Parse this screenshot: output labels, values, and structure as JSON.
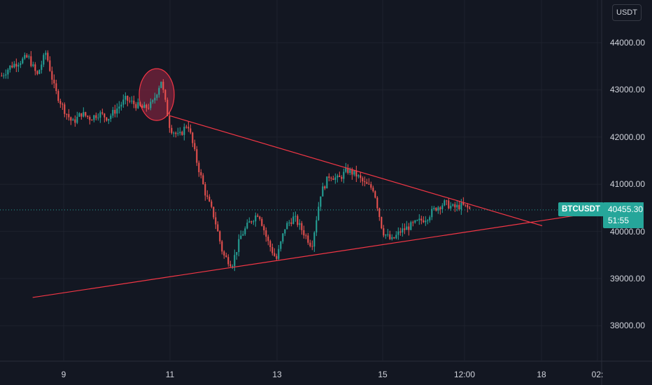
{
  "chart_data": {
    "type": "candlestick",
    "symbol": "BTCUSDT",
    "currency": "USDT",
    "last_price": "40455.30",
    "countdown": "51:55",
    "y_ticks": [
      "44000.00",
      "43000.00",
      "42000.00",
      "41000.00",
      "40000.00",
      "39000.00",
      "38000.00"
    ],
    "x_ticks": [
      "9",
      "11",
      "13",
      "15",
      "12:00",
      "18",
      "02:"
    ],
    "ylim": [
      37000,
      44800
    ],
    "grid": true,
    "colors": {
      "background": "#131722",
      "grid": "#1e222d",
      "up": "#26a69a",
      "down": "#ef5350",
      "trendline": "#f23645",
      "highlight": "#9c2745",
      "last_price_line": "#26a69a"
    },
    "trendlines": [
      {
        "name": "upper",
        "from": {
          "x": "Jan 11 00:00",
          "y": 42450
        },
        "to": {
          "x": "Jan 18 00:00",
          "y": 40120
        }
      },
      {
        "name": "lower",
        "from": {
          "x": "Jan 8 10:00",
          "y": 38600
        },
        "to": {
          "x": "Jan 19 00:00",
          "y": 40400
        }
      }
    ],
    "highlight_zone": {
      "x": "Jan 10 18:00",
      "y": 42900
    },
    "price_path": [
      {
        "t": "Jan 7 20:00",
        "p": 43300
      },
      {
        "t": "Jan 8 00:00",
        "p": 43500
      },
      {
        "t": "Jan 8 04:00",
        "p": 43600
      },
      {
        "t": "Jan 8 08:00",
        "p": 43700
      },
      {
        "t": "Jan 8 12:00",
        "p": 43300
      },
      {
        "t": "Jan 8 16:00",
        "p": 43800
      },
      {
        "t": "Jan 8 20:00",
        "p": 43000
      },
      {
        "t": "Jan 9 00:00",
        "p": 42600
      },
      {
        "t": "Jan 9 04:00",
        "p": 42300
      },
      {
        "t": "Jan 9 08:00",
        "p": 42500
      },
      {
        "t": "Jan 9 12:00",
        "p": 42400
      },
      {
        "t": "Jan 9 16:00",
        "p": 42500
      },
      {
        "t": "Jan 9 20:00",
        "p": 42400
      },
      {
        "t": "Jan 10 00:00",
        "p": 42600
      },
      {
        "t": "Jan 10 04:00",
        "p": 42800
      },
      {
        "t": "Jan 10 08:00",
        "p": 42700
      },
      {
        "t": "Jan 10 12:00",
        "p": 42600
      },
      {
        "t": "Jan 10 16:00",
        "p": 42700
      },
      {
        "t": "Jan 10 20:00",
        "p": 43200
      },
      {
        "t": "Jan 11 00:00",
        "p": 42200
      },
      {
        "t": "Jan 11 04:00",
        "p": 42000
      },
      {
        "t": "Jan 11 08:00",
        "p": 42300
      },
      {
        "t": "Jan 11 12:00",
        "p": 41500
      },
      {
        "t": "Jan 11 16:00",
        "p": 40800
      },
      {
        "t": "Jan 11 20:00",
        "p": 40300
      },
      {
        "t": "Jan 12 00:00",
        "p": 39500
      },
      {
        "t": "Jan 12 04:00",
        "p": 39300
      },
      {
        "t": "Jan 12 08:00",
        "p": 39900
      },
      {
        "t": "Jan 12 12:00",
        "p": 40200
      },
      {
        "t": "Jan 12 16:00",
        "p": 40400
      },
      {
        "t": "Jan 12 20:00",
        "p": 39800
      },
      {
        "t": "Jan 13 00:00",
        "p": 39400
      },
      {
        "t": "Jan 13 04:00",
        "p": 40100
      },
      {
        "t": "Jan 13 08:00",
        "p": 40300
      },
      {
        "t": "Jan 13 12:00",
        "p": 40000
      },
      {
        "t": "Jan 13 16:00",
        "p": 39700
      },
      {
        "t": "Jan 13 20:00",
        "p": 40800
      },
      {
        "t": "Jan 14 00:00",
        "p": 41200
      },
      {
        "t": "Jan 14 04:00",
        "p": 41100
      },
      {
        "t": "Jan 14 08:00",
        "p": 41300
      },
      {
        "t": "Jan 14 12:00",
        "p": 41200
      },
      {
        "t": "Jan 14 16:00",
        "p": 41000
      },
      {
        "t": "Jan 14 20:00",
        "p": 40900
      },
      {
        "t": "Jan 15 00:00",
        "p": 40000
      },
      {
        "t": "Jan 15 04:00",
        "p": 39800
      },
      {
        "t": "Jan 15 08:00",
        "p": 40000
      },
      {
        "t": "Jan 15 12:00",
        "p": 40100
      },
      {
        "t": "Jan 15 16:00",
        "p": 40200
      },
      {
        "t": "Jan 15 20:00",
        "p": 40300
      },
      {
        "t": "Jan 16 00:00",
        "p": 40500
      },
      {
        "t": "Jan 16 04:00",
        "p": 40600
      },
      {
        "t": "Jan 16 08:00",
        "p": 40500
      },
      {
        "t": "Jan 16 12:00",
        "p": 40550
      },
      {
        "t": "Jan 16 16:00",
        "p": 40455
      }
    ]
  }
}
